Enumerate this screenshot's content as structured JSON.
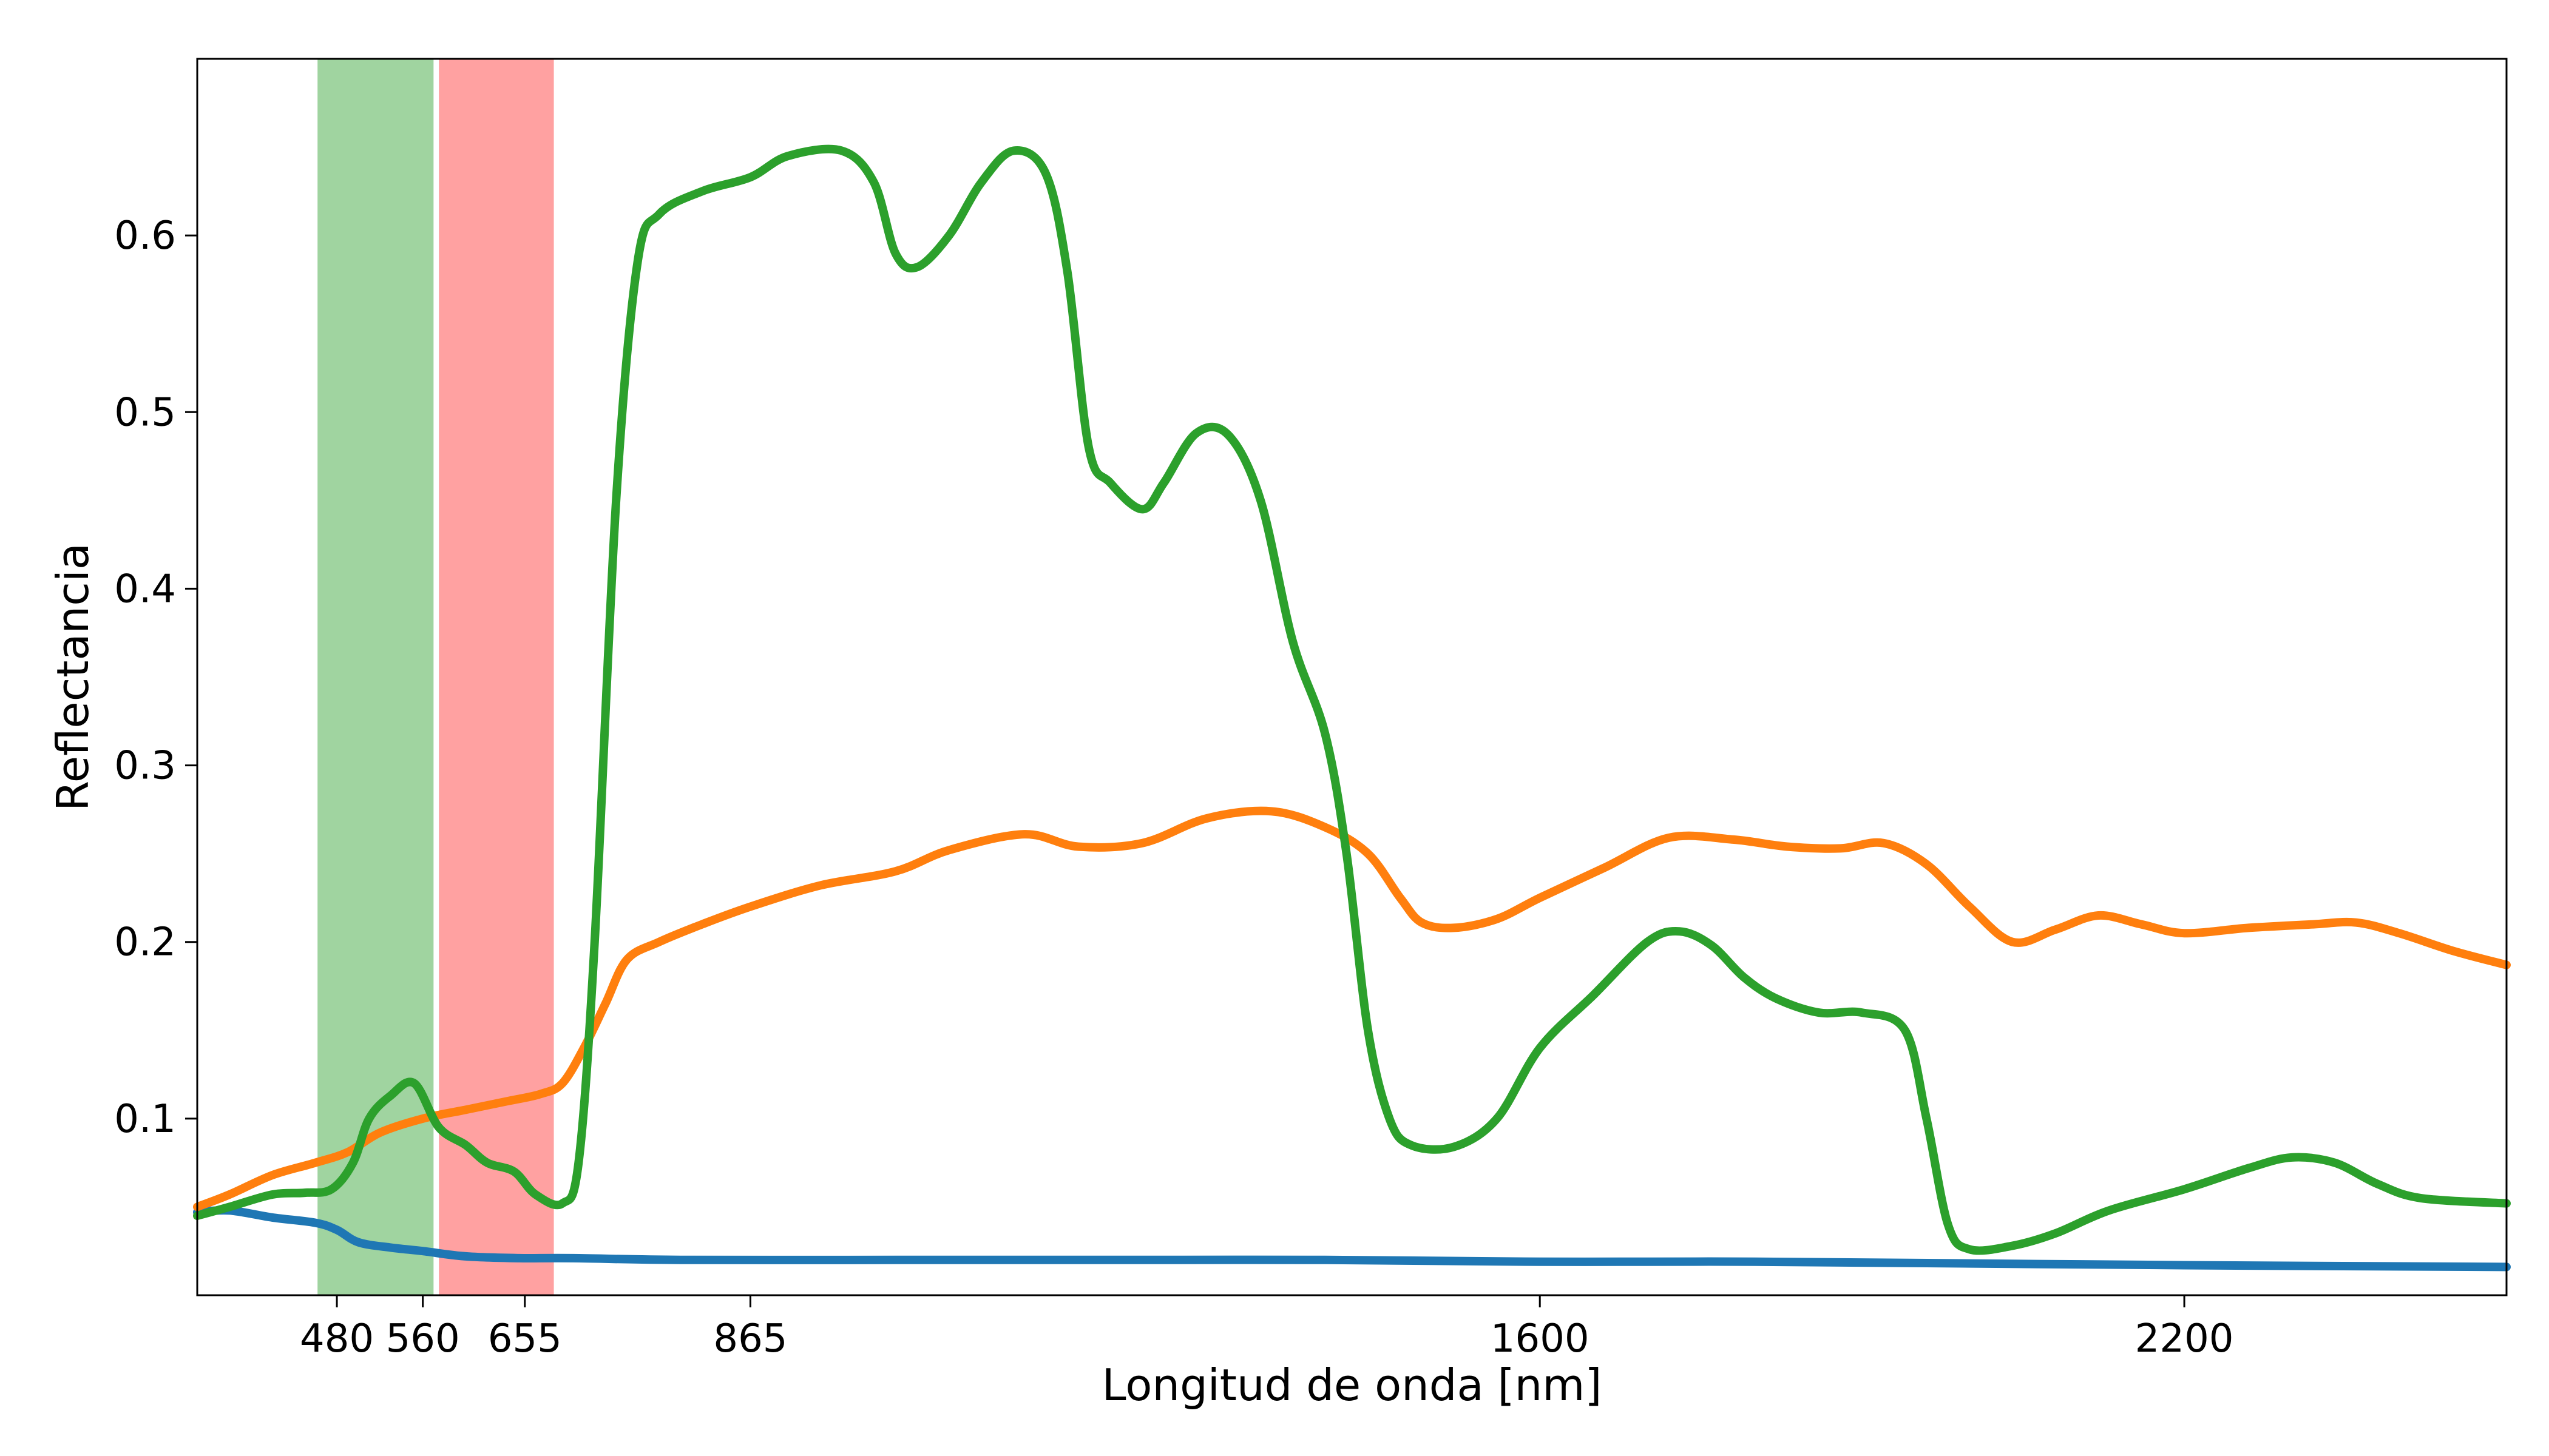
{
  "chart_data": {
    "type": "line",
    "xlabel": "Longitud de onda [nm]",
    "ylabel": "Reflectancia",
    "xlim": [
      350,
      2500
    ],
    "ylim": [
      0.0,
      0.7
    ],
    "grid": false,
    "x_ticks": [
      {
        "value": 480,
        "label": "480"
      },
      {
        "value": 560,
        "label": "560"
      },
      {
        "value": 655,
        "label": "655"
      },
      {
        "value": 865,
        "label": "865"
      },
      {
        "value": 1600,
        "label": "1600"
      },
      {
        "value": 2200,
        "label": "2200"
      }
    ],
    "y_ticks": [
      {
        "value": 0.1,
        "label": "0.1"
      },
      {
        "value": 0.2,
        "label": "0.2"
      },
      {
        "value": 0.3,
        "label": "0.3"
      },
      {
        "value": 0.4,
        "label": "0.4"
      },
      {
        "value": 0.5,
        "label": "0.5"
      },
      {
        "value": 0.6,
        "label": "0.6"
      }
    ],
    "bands": [
      {
        "x0": 462,
        "x1": 570,
        "color": "#2ca02c",
        "opacity": 0.45
      },
      {
        "x0": 575,
        "x1": 682,
        "color": "#ff4444",
        "opacity": 0.5
      }
    ],
    "series": [
      {
        "color": "#1f77b4",
        "points": [
          [
            350,
            0.047
          ],
          [
            380,
            0.048
          ],
          [
            420,
            0.044
          ],
          [
            460,
            0.041
          ],
          [
            480,
            0.037
          ],
          [
            500,
            0.03
          ],
          [
            530,
            0.027
          ],
          [
            560,
            0.025
          ],
          [
            600,
            0.022
          ],
          [
            650,
            0.021
          ],
          [
            700,
            0.021
          ],
          [
            800,
            0.02
          ],
          [
            1000,
            0.02
          ],
          [
            1200,
            0.02
          ],
          [
            1400,
            0.02
          ],
          [
            1600,
            0.019
          ],
          [
            1800,
            0.019
          ],
          [
            2000,
            0.018
          ],
          [
            2200,
            0.017
          ],
          [
            2500,
            0.016
          ]
        ]
      },
      {
        "color": "#ff7f0e",
        "points": [
          [
            350,
            0.05
          ],
          [
            380,
            0.057
          ],
          [
            420,
            0.068
          ],
          [
            460,
            0.075
          ],
          [
            490,
            0.081
          ],
          [
            520,
            0.092
          ],
          [
            560,
            0.1
          ],
          [
            600,
            0.105
          ],
          [
            640,
            0.11
          ],
          [
            670,
            0.114
          ],
          [
            690,
            0.12
          ],
          [
            710,
            0.14
          ],
          [
            730,
            0.165
          ],
          [
            750,
            0.19
          ],
          [
            780,
            0.2
          ],
          [
            820,
            0.21
          ],
          [
            865,
            0.22
          ],
          [
            930,
            0.232
          ],
          [
            1000,
            0.24
          ],
          [
            1050,
            0.252
          ],
          [
            1120,
            0.261
          ],
          [
            1170,
            0.254
          ],
          [
            1230,
            0.256
          ],
          [
            1290,
            0.27
          ],
          [
            1350,
            0.274
          ],
          [
            1400,
            0.265
          ],
          [
            1440,
            0.25
          ],
          [
            1470,
            0.225
          ],
          [
            1490,
            0.211
          ],
          [
            1520,
            0.208
          ],
          [
            1560,
            0.213
          ],
          [
            1600,
            0.225
          ],
          [
            1660,
            0.242
          ],
          [
            1720,
            0.259
          ],
          [
            1780,
            0.258
          ],
          [
            1830,
            0.254
          ],
          [
            1880,
            0.253
          ],
          [
            1920,
            0.256
          ],
          [
            1960,
            0.244
          ],
          [
            2000,
            0.22
          ],
          [
            2040,
            0.2
          ],
          [
            2080,
            0.207
          ],
          [
            2120,
            0.215
          ],
          [
            2160,
            0.21
          ],
          [
            2200,
            0.205
          ],
          [
            2260,
            0.208
          ],
          [
            2320,
            0.21
          ],
          [
            2360,
            0.211
          ],
          [
            2400,
            0.205
          ],
          [
            2450,
            0.195
          ],
          [
            2500,
            0.187
          ]
        ]
      },
      {
        "color": "#2ca02c",
        "points": [
          [
            350,
            0.045
          ],
          [
            380,
            0.05
          ],
          [
            420,
            0.057
          ],
          [
            450,
            0.058
          ],
          [
            475,
            0.06
          ],
          [
            495,
            0.075
          ],
          [
            510,
            0.1
          ],
          [
            530,
            0.113
          ],
          [
            552,
            0.12
          ],
          [
            575,
            0.095
          ],
          [
            600,
            0.085
          ],
          [
            620,
            0.075
          ],
          [
            645,
            0.07
          ],
          [
            665,
            0.057
          ],
          [
            690,
            0.052
          ],
          [
            705,
            0.075
          ],
          [
            720,
            0.2
          ],
          [
            740,
            0.45
          ],
          [
            760,
            0.585
          ],
          [
            780,
            0.612
          ],
          [
            820,
            0.625
          ],
          [
            865,
            0.633
          ],
          [
            900,
            0.645
          ],
          [
            950,
            0.648
          ],
          [
            980,
            0.63
          ],
          [
            1000,
            0.59
          ],
          [
            1020,
            0.582
          ],
          [
            1050,
            0.6
          ],
          [
            1080,
            0.63
          ],
          [
            1110,
            0.648
          ],
          [
            1140,
            0.635
          ],
          [
            1160,
            0.58
          ],
          [
            1180,
            0.48
          ],
          [
            1200,
            0.46
          ],
          [
            1230,
            0.445
          ],
          [
            1250,
            0.46
          ],
          [
            1280,
            0.488
          ],
          [
            1310,
            0.487
          ],
          [
            1340,
            0.45
          ],
          [
            1370,
            0.37
          ],
          [
            1400,
            0.318
          ],
          [
            1420,
            0.25
          ],
          [
            1440,
            0.15
          ],
          [
            1460,
            0.1
          ],
          [
            1480,
            0.085
          ],
          [
            1520,
            0.084
          ],
          [
            1560,
            0.1
          ],
          [
            1600,
            0.14
          ],
          [
            1650,
            0.17
          ],
          [
            1700,
            0.2
          ],
          [
            1730,
            0.206
          ],
          [
            1760,
            0.198
          ],
          [
            1790,
            0.18
          ],
          [
            1820,
            0.168
          ],
          [
            1860,
            0.16
          ],
          [
            1900,
            0.16
          ],
          [
            1940,
            0.15
          ],
          [
            1960,
            0.1
          ],
          [
            1980,
            0.04
          ],
          [
            2000,
            0.026
          ],
          [
            2040,
            0.028
          ],
          [
            2080,
            0.035
          ],
          [
            2130,
            0.048
          ],
          [
            2200,
            0.06
          ],
          [
            2260,
            0.072
          ],
          [
            2300,
            0.078
          ],
          [
            2340,
            0.075
          ],
          [
            2380,
            0.063
          ],
          [
            2420,
            0.055
          ],
          [
            2500,
            0.052
          ]
        ]
      }
    ]
  }
}
